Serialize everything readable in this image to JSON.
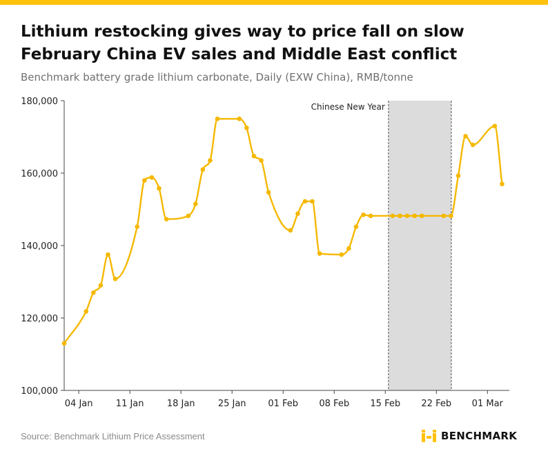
{
  "title_line1": "Lithium restocking gives way to price fall on slow",
  "title_line2": "February China EV sales and Middle East conflict",
  "subtitle": "Benchmark battery grade lithium carbonate, Daily (EXW China), RMB/tonne",
  "source": "Source: Benchmark Lithium Price Assessment",
  "brand": "BENCHMARK",
  "colors": {
    "accent": "#ffc20e",
    "line": "#f5b800",
    "shade": "#dcdcdc",
    "axis": "#444444",
    "text": "#111111",
    "muted": "#6f6f6f"
  },
  "chart_data": {
    "type": "line",
    "title": "Lithium restocking gives way to price fall on slow February China EV sales and Middle East conflict",
    "subtitle": "Benchmark battery grade lithium carbonate, Daily (EXW China), RMB/tonne",
    "xlabel": "",
    "ylabel": "",
    "ylim": [
      100000,
      180000
    ],
    "yticks": [
      100000,
      120000,
      140000,
      160000,
      180000
    ],
    "ytick_labels": [
      "100,000",
      "120,000",
      "140,000",
      "160,000",
      "180,000"
    ],
    "xlim": [
      "2026-01-02",
      "2026-03-04"
    ],
    "xticks": [
      "2026-01-04",
      "2026-01-11",
      "2026-01-18",
      "2026-01-25",
      "2026-02-01",
      "2026-02-08",
      "2026-02-15",
      "2026-02-22",
      "2026-03-01"
    ],
    "xtick_labels": [
      "04 Jan",
      "11 Jan",
      "18 Jan",
      "25 Jan",
      "01 Feb",
      "08 Feb",
      "15 Feb",
      "22 Feb",
      "01 Mar"
    ],
    "grid": false,
    "series": [
      {
        "x": [
          "2026-01-02",
          "2026-01-05",
          "2026-01-06",
          "2026-01-07",
          "2026-01-08",
          "2026-01-09",
          "2026-01-12",
          "2026-01-13",
          "2026-01-14",
          "2026-01-15",
          "2026-01-16",
          "2026-01-19",
          "2026-01-20",
          "2026-01-21",
          "2026-01-22",
          "2026-01-23",
          "2026-01-26",
          "2026-01-27",
          "2026-01-28",
          "2026-01-29",
          "2026-01-30",
          "2026-02-02",
          "2026-02-03",
          "2026-02-04",
          "2026-02-05",
          "2026-02-06",
          "2026-02-09",
          "2026-02-10",
          "2026-02-11",
          "2026-02-12",
          "2026-02-13",
          "2026-02-16",
          "2026-02-17",
          "2026-02-18",
          "2026-02-19",
          "2026-02-20",
          "2026-02-23",
          "2026-02-24",
          "2026-02-25",
          "2026-02-26",
          "2026-02-27",
          "2026-03-02",
          "2026-03-03"
        ],
        "values": [
          113000,
          121800,
          127000,
          129000,
          137500,
          130800,
          145200,
          158000,
          158800,
          155800,
          147300,
          148200,
          151500,
          161000,
          163500,
          175000,
          175000,
          172500,
          164700,
          163500,
          154700,
          144200,
          148800,
          152200,
          152200,
          137800,
          137500,
          139200,
          145200,
          148500,
          148200,
          148200,
          148200,
          148200,
          148200,
          148200,
          148200,
          148200,
          159300,
          170200,
          167800,
          173000,
          157000
        ]
      }
    ],
    "annotations": [
      {
        "label": "Chinese New Year",
        "start": "2026-02-16",
        "end": "2026-02-24"
      }
    ]
  }
}
